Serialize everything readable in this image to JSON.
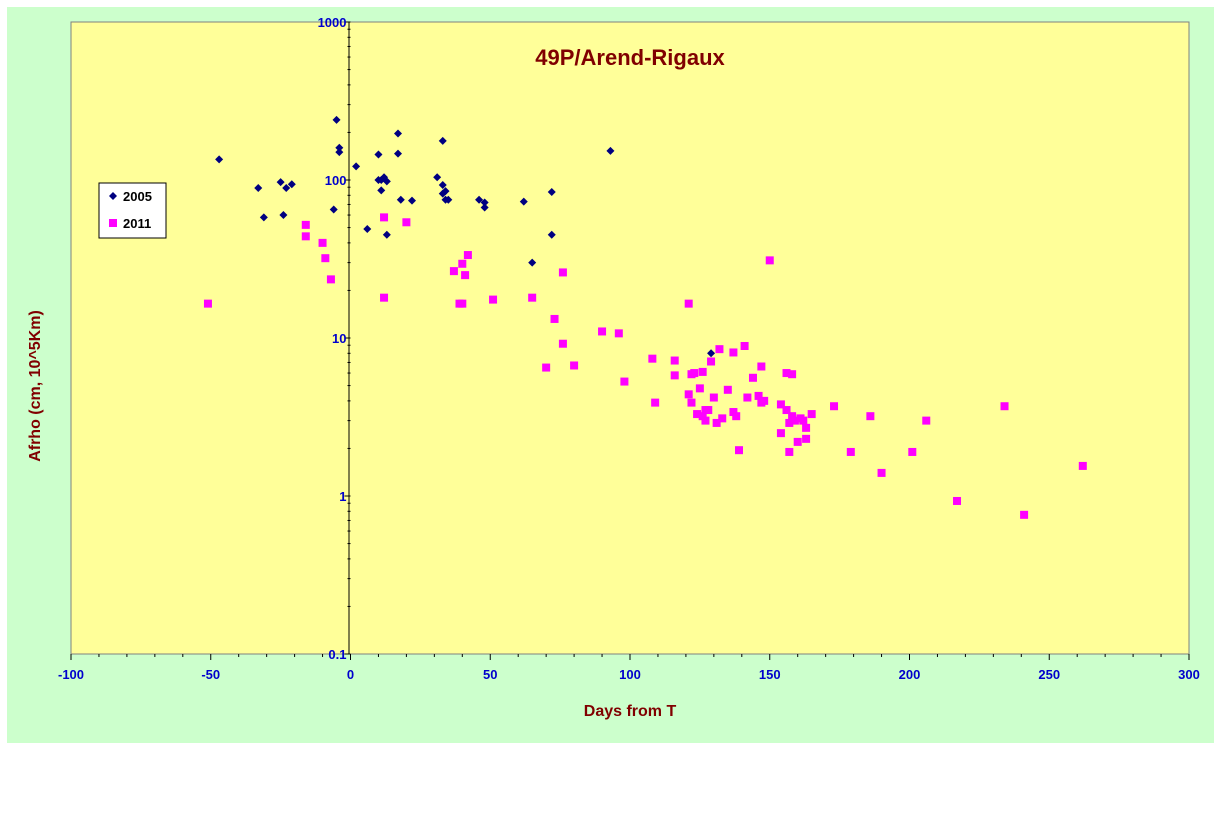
{
  "chart_data": {
    "type": "scatter",
    "title": "49P/Arend-Rigaux",
    "xlabel": "Days from T",
    "ylabel": "Afrho (cm, 10^5Km)",
    "xlim": [
      -100,
      300
    ],
    "ylim": [
      0.1,
      1000
    ],
    "y_scale": "log",
    "x_ticks": [
      -100,
      -50,
      0,
      50,
      100,
      150,
      200,
      250,
      300
    ],
    "x_tick_labels": [
      "-100",
      "-50",
      "0",
      "50",
      "100",
      "150",
      "200",
      "250",
      "300"
    ],
    "y_ticks": [
      0.1,
      1,
      10,
      100,
      1000
    ],
    "y_tick_labels": [
      "0.1",
      "1",
      "10",
      "100",
      "1000"
    ],
    "legend_position": "left",
    "grid": false,
    "colors": {
      "outer_background": "#CCFFCC",
      "plot_background": "#FFFF99",
      "series_2005": "#000080",
      "series_2011": "#FF00FF",
      "title_color": "#800000",
      "tick_color": "#0000CC"
    },
    "series": [
      {
        "name": "2005",
        "marker": "diamond",
        "points": [
          [
            -47,
            135
          ],
          [
            -33,
            89
          ],
          [
            -31,
            58
          ],
          [
            -25,
            97
          ],
          [
            -24,
            60
          ],
          [
            -23,
            89
          ],
          [
            -21,
            94
          ],
          [
            -6,
            65
          ],
          [
            -5,
            240
          ],
          [
            -4,
            160
          ],
          [
            -4,
            150
          ],
          [
            2,
            122
          ],
          [
            6,
            49
          ],
          [
            10,
            145
          ],
          [
            10,
            100
          ],
          [
            11,
            86
          ],
          [
            11,
            100
          ],
          [
            12,
            104
          ],
          [
            13,
            45
          ],
          [
            13,
            98
          ],
          [
            17,
            147
          ],
          [
            17,
            197
          ],
          [
            18,
            75
          ],
          [
            22,
            74
          ],
          [
            31,
            104
          ],
          [
            33,
            93
          ],
          [
            33,
            177
          ],
          [
            33,
            82
          ],
          [
            34,
            85
          ],
          [
            34,
            75
          ],
          [
            35,
            75
          ],
          [
            46,
            75
          ],
          [
            48,
            67
          ],
          [
            48,
            72
          ],
          [
            62,
            73
          ],
          [
            65,
            30
          ],
          [
            72,
            45
          ],
          [
            72,
            84
          ],
          [
            93,
            153
          ],
          [
            129,
            8
          ]
        ]
      },
      {
        "name": "2011",
        "marker": "square",
        "points": [
          [
            -51,
            16.5
          ],
          [
            -16,
            52
          ],
          [
            -16,
            44
          ],
          [
            -10,
            40
          ],
          [
            -9,
            32
          ],
          [
            -7,
            23.5
          ],
          [
            12,
            58
          ],
          [
            12,
            18
          ],
          [
            20,
            54
          ],
          [
            37,
            26.5
          ],
          [
            39,
            16.5
          ],
          [
            40,
            29.5
          ],
          [
            40,
            16.5
          ],
          [
            41,
            25
          ],
          [
            42,
            33.5
          ],
          [
            51,
            17.5
          ],
          [
            65,
            18
          ],
          [
            70,
            6.5
          ],
          [
            73,
            13.2
          ],
          [
            76,
            26
          ],
          [
            76,
            9.2
          ],
          [
            80,
            6.7
          ],
          [
            90,
            11
          ],
          [
            96,
            10.7
          ],
          [
            98,
            5.3
          ],
          [
            108,
            7.4
          ],
          [
            109,
            3.9
          ],
          [
            116,
            7.2
          ],
          [
            116,
            5.8
          ],
          [
            121,
            16.5
          ],
          [
            121,
            4.4
          ],
          [
            122,
            3.9
          ],
          [
            122,
            5.9
          ],
          [
            123,
            6
          ],
          [
            124,
            3.3
          ],
          [
            125,
            4.8
          ],
          [
            126,
            6.1
          ],
          [
            126,
            3.2
          ],
          [
            127,
            3
          ],
          [
            127,
            3.5
          ],
          [
            128,
            3.5
          ],
          [
            129,
            7.1
          ],
          [
            130,
            4.2
          ],
          [
            131,
            2.9
          ],
          [
            132,
            8.5
          ],
          [
            133,
            3.1
          ],
          [
            135,
            4.7
          ],
          [
            137,
            3.4
          ],
          [
            137,
            8.1
          ],
          [
            138,
            3.2
          ],
          [
            139,
            1.95
          ],
          [
            141,
            8.9
          ],
          [
            142,
            4.2
          ],
          [
            144,
            5.6
          ],
          [
            146,
            4.3
          ],
          [
            147,
            6.6
          ],
          [
            147,
            3.9
          ],
          [
            148,
            4
          ],
          [
            150,
            31
          ],
          [
            154,
            2.5
          ],
          [
            154,
            3.8
          ],
          [
            156,
            6
          ],
          [
            156,
            3.5
          ],
          [
            157,
            2.9
          ],
          [
            157,
            1.9
          ],
          [
            158,
            5.9
          ],
          [
            158,
            3.2
          ],
          [
            159,
            3
          ],
          [
            160,
            2.2
          ],
          [
            161,
            3.1
          ],
          [
            162,
            3
          ],
          [
            163,
            2.3
          ],
          [
            163,
            2.7
          ],
          [
            165,
            3.3
          ],
          [
            173,
            3.7
          ],
          [
            179,
            1.9
          ],
          [
            186,
            3.2
          ],
          [
            190,
            1.4
          ],
          [
            201,
            1.9
          ],
          [
            206,
            3
          ],
          [
            217,
            0.93
          ],
          [
            234,
            3.7
          ],
          [
            241,
            0.76
          ],
          [
            262,
            1.55
          ]
        ]
      }
    ]
  }
}
